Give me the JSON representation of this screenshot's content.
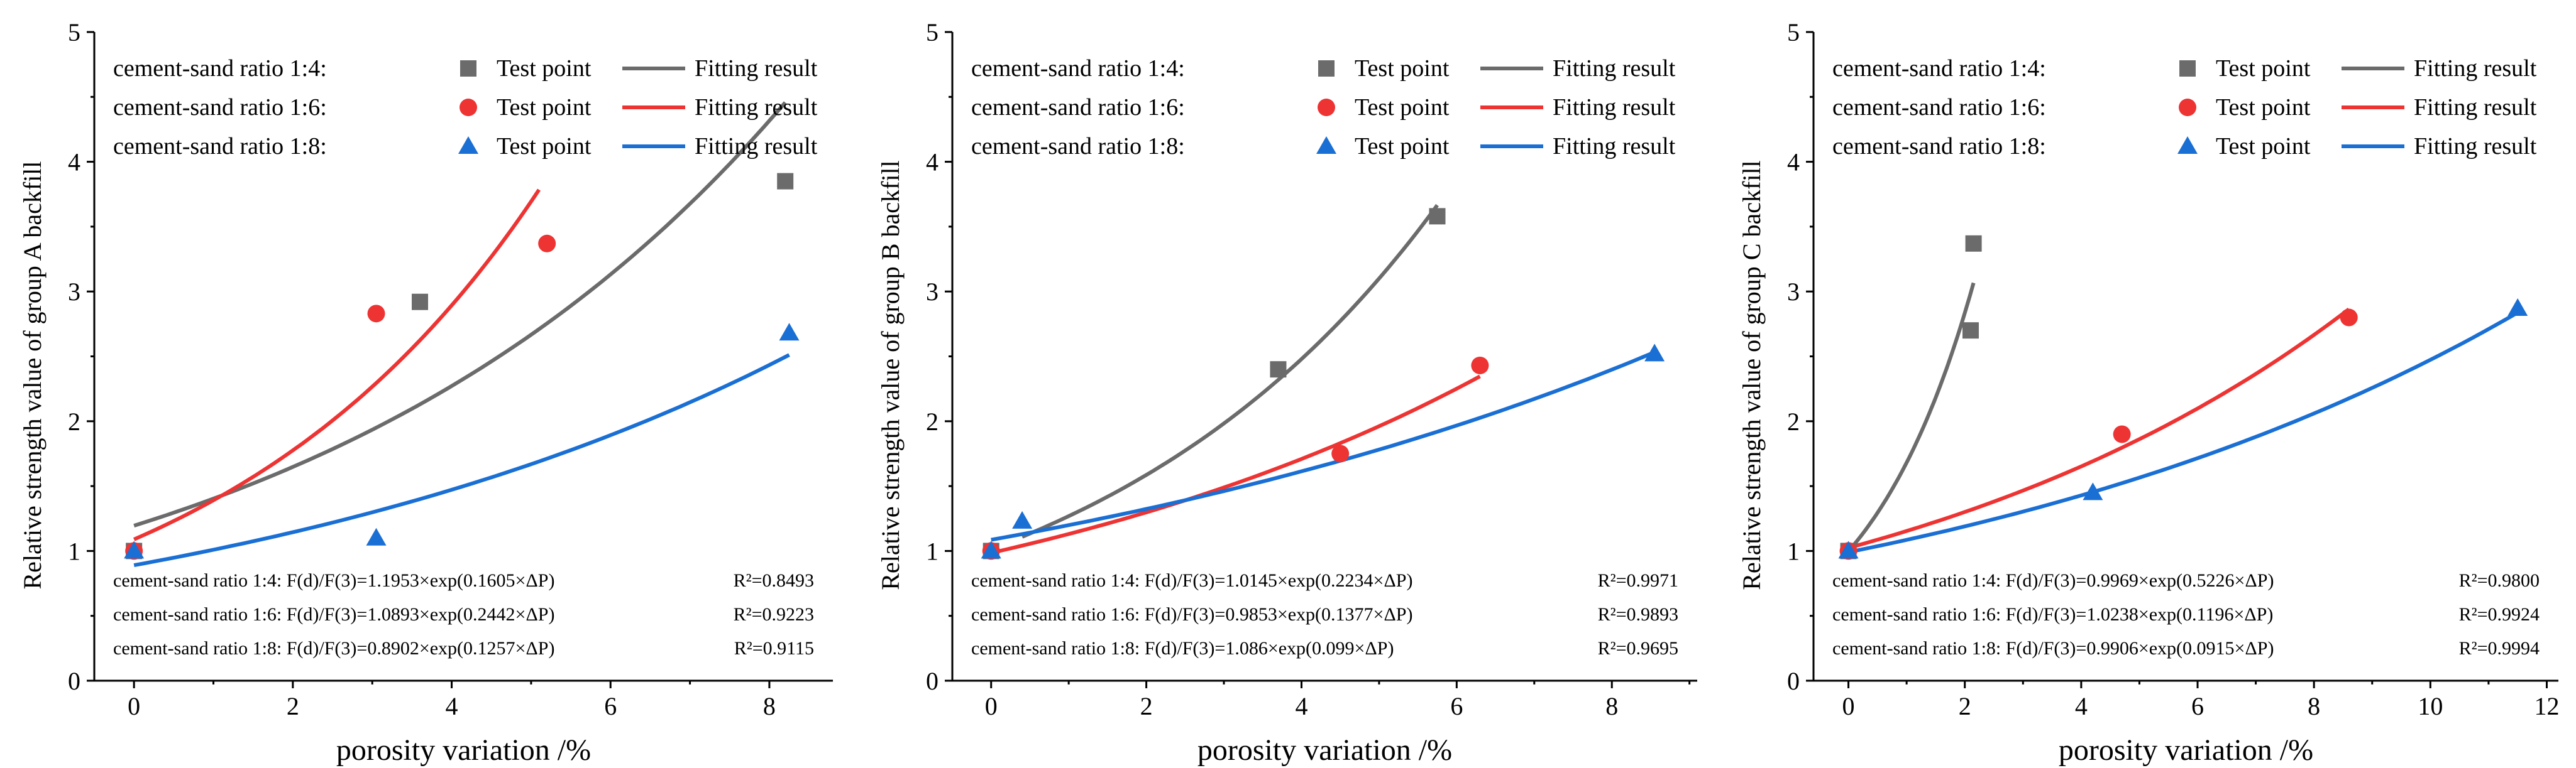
{
  "chart_data": [
    {
      "type": "scatter",
      "panel": "A",
      "xlabel": "porosity variation /%",
      "ylabel": "Relative strength value of group A backfill",
      "xlim": [
        -0.5,
        8.8
      ],
      "ylim": [
        0,
        5
      ],
      "xticks": [
        0,
        2,
        4,
        6,
        8
      ],
      "yticks": [
        0,
        1,
        2,
        3,
        4,
        5
      ],
      "legend_loc": "top-left",
      "series": [
        {
          "name": "cement-sand ratio 1:4",
          "legend_label": "cement-sand ratio 1:4:",
          "point_label": "Test point",
          "fit_label": "Fitting result",
          "marker": "square",
          "color": "#6b6b6b",
          "points": [
            [
              0,
              1.0
            ],
            [
              3.6,
              2.92
            ],
            [
              8.2,
              3.85
            ]
          ],
          "fit": {
            "a": 1.1953,
            "b": 0.1605,
            "x_range": [
              0,
              8.2
            ]
          },
          "equation": "cement-sand ratio 1:4: F(d)/F(3)=1.1953×exp(0.1605×ΔP)",
          "r2": "R²=0.8493"
        },
        {
          "name": "cement-sand ratio 1:6",
          "legend_label": "cement-sand ratio 1:6:",
          "point_label": "Test point",
          "fit_label": "Fitting result",
          "marker": "circle",
          "color": "#ee3333",
          "points": [
            [
              0,
              1.0
            ],
            [
              3.05,
              2.83
            ],
            [
              5.2,
              3.37
            ]
          ],
          "fit": {
            "a": 1.0893,
            "b": 0.2442,
            "x_range": [
              0,
              5.1
            ]
          },
          "equation": "cement-sand ratio 1:6: F(d)/F(3)=1.0893×exp(0.2442×ΔP)",
          "r2": "R²=0.9223"
        },
        {
          "name": "cement-sand ratio 1:8",
          "legend_label": "cement-sand ratio 1:8:",
          "point_label": "Test point",
          "fit_label": "Fitting result",
          "marker": "triangle",
          "color": "#1a6fd4",
          "points": [
            [
              0,
              1.0
            ],
            [
              3.05,
              1.1
            ],
            [
              8.25,
              2.68
            ]
          ],
          "fit": {
            "a": 0.8902,
            "b": 0.1257,
            "x_range": [
              0,
              8.25
            ]
          },
          "equation": "cement-sand ratio 1:8: F(d)/F(3)=0.8902×exp(0.1257×ΔP)",
          "r2": "R²=0.9115"
        }
      ]
    },
    {
      "type": "scatter",
      "panel": "B",
      "xlabel": "porosity variation /%",
      "ylabel": "Relative strength value of group B backfill",
      "xlim": [
        -0.5,
        9.1
      ],
      "ylim": [
        0,
        5
      ],
      "xticks": [
        0,
        2,
        4,
        6,
        8
      ],
      "yticks": [
        0,
        1,
        2,
        3,
        4,
        5
      ],
      "legend_loc": "top-left",
      "series": [
        {
          "name": "cement-sand ratio 1:4",
          "legend_label": "cement-sand ratio 1:4:",
          "point_label": "Test point",
          "fit_label": "Fitting result",
          "marker": "square",
          "color": "#6b6b6b",
          "points": [
            [
              0,
              1.0
            ],
            [
              3.7,
              2.4
            ],
            [
              5.75,
              3.58
            ]
          ],
          "fit": {
            "a": 1.0145,
            "b": 0.2234,
            "x_range": [
              0.4,
              5.75
            ]
          },
          "equation": "cement-sand ratio 1:4: F(d)/F(3)=1.0145×exp(0.2234×ΔP)",
          "r2": "R²=0.9971"
        },
        {
          "name": "cement-sand ratio 1:6",
          "legend_label": "cement-sand ratio 1:6:",
          "point_label": "Test point",
          "fit_label": "Fitting result",
          "marker": "circle",
          "color": "#ee3333",
          "points": [
            [
              0,
              1.0
            ],
            [
              4.5,
              1.75
            ],
            [
              6.3,
              2.43
            ]
          ],
          "fit": {
            "a": 0.9853,
            "b": 0.1377,
            "x_range": [
              0,
              6.3
            ]
          },
          "equation": "cement-sand ratio 1:6: F(d)/F(3)=0.9853×exp(0.1377×ΔP)",
          "r2": "R²=0.9893"
        },
        {
          "name": "cement-sand ratio 1:8",
          "legend_label": "cement-sand ratio 1:8:",
          "point_label": "Test point",
          "fit_label": "Fitting result",
          "marker": "triangle",
          "color": "#1a6fd4",
          "points": [
            [
              0,
              1.0
            ],
            [
              0.4,
              1.23
            ],
            [
              8.55,
              2.52
            ]
          ],
          "fit": {
            "a": 1.086,
            "b": 0.099,
            "x_range": [
              0,
              8.55
            ]
          },
          "equation": "cement-sand ratio 1:8: F(d)/F(3)=1.086×exp(0.099×ΔP)",
          "r2": "R²=0.9695"
        }
      ]
    },
    {
      "type": "scatter",
      "panel": "C",
      "xlabel": "porosity variation /%",
      "ylabel": "Relative strength value of group C backfill",
      "xlim": [
        -0.6,
        12.2
      ],
      "ylim": [
        0,
        5
      ],
      "xticks": [
        0,
        2,
        4,
        6,
        8,
        10,
        12
      ],
      "yticks": [
        0,
        1,
        2,
        3,
        4,
        5
      ],
      "legend_loc": "top-left",
      "series": [
        {
          "name": "cement-sand ratio 1:4",
          "legend_label": "cement-sand ratio 1:4:",
          "point_label": "Test point",
          "fit_label": "Fitting result",
          "marker": "square",
          "color": "#6b6b6b",
          "points": [
            [
              0,
              1.0
            ],
            [
              2.1,
              2.7
            ],
            [
              2.15,
              3.37
            ]
          ],
          "fit": {
            "a": 0.9969,
            "b": 0.5226,
            "x_range": [
              0,
              2.15
            ]
          },
          "equation": "cement-sand ratio 1:4: F(d)/F(3)=0.9969×exp(0.5226×ΔP)",
          "r2": "R²=0.9800"
        },
        {
          "name": "cement-sand ratio 1:6",
          "legend_label": "cement-sand ratio 1:6:",
          "point_label": "Test point",
          "fit_label": "Fitting result",
          "marker": "circle",
          "color": "#ee3333",
          "points": [
            [
              0,
              1.0
            ],
            [
              4.7,
              1.9
            ],
            [
              8.6,
              2.8
            ]
          ],
          "fit": {
            "a": 1.0238,
            "b": 0.1196,
            "x_range": [
              0,
              8.6
            ]
          },
          "equation": "cement-sand ratio 1:6: F(d)/F(3)=1.0238×exp(0.1196×ΔP)",
          "r2": "R²=0.9924"
        },
        {
          "name": "cement-sand ratio 1:8",
          "legend_label": "cement-sand ratio 1:8:",
          "point_label": "Test point",
          "fit_label": "Fitting result",
          "marker": "triangle",
          "color": "#1a6fd4",
          "points": [
            [
              0,
              1.0
            ],
            [
              4.2,
              1.45
            ],
            [
              11.5,
              2.87
            ]
          ],
          "fit": {
            "a": 0.9906,
            "b": 0.0915,
            "x_range": [
              0,
              11.5
            ]
          },
          "equation": "cement-sand ratio 1:8: F(d)/F(3)=0.9906×exp(0.0915×ΔP)",
          "r2": "R²=0.9994"
        }
      ]
    }
  ]
}
